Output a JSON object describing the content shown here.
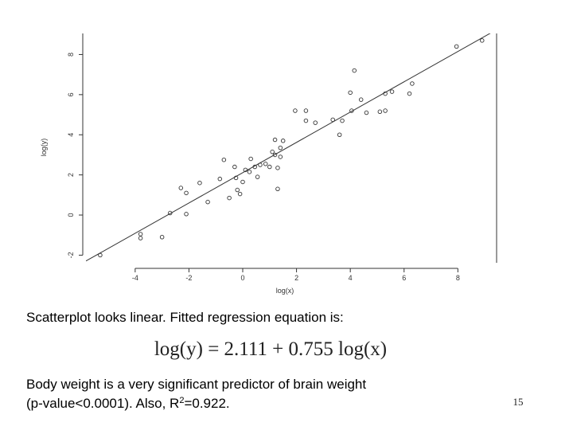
{
  "chart_data": {
    "type": "scatter",
    "xlabel": "log(x)",
    "ylabel": "log(y)",
    "x": [
      -5.3,
      -3.8,
      -3.8,
      -3.0,
      -2.7,
      -2.3,
      -2.1,
      -2.1,
      -1.6,
      -1.3,
      -0.85,
      -0.7,
      -0.5,
      -0.3,
      -0.25,
      -0.2,
      -0.1,
      0,
      0.1,
      0.25,
      0.3,
      0.45,
      0.55,
      0.65,
      0.85,
      1.0,
      1.1,
      1.2,
      1.2,
      1.3,
      1.3,
      1.4,
      1.4,
      1.5,
      1.95,
      2.35,
      2.35,
      2.7,
      3.35,
      3.6,
      3.7,
      4.0,
      4.05,
      4.15,
      4.4,
      4.6,
      5.1,
      5.3,
      5.3,
      5.55,
      6.2,
      6.3,
      7.95,
      8.9
    ],
    "values": [
      -2.0,
      -0.95,
      -1.15,
      -1.1,
      0.1,
      1.35,
      0.05,
      1.1,
      1.6,
      0.65,
      1.8,
      2.75,
      0.85,
      2.4,
      1.85,
      1.25,
      1.05,
      1.65,
      2.25,
      2.15,
      2.8,
      2.4,
      1.9,
      2.5,
      2.55,
      2.4,
      3.15,
      3.0,
      3.75,
      1.3,
      2.35,
      2.9,
      3.35,
      3.7,
      5.2,
      4.7,
      5.2,
      4.6,
      4.75,
      4.0,
      4.7,
      6.1,
      5.2,
      7.2,
      5.75,
      5.1,
      5.15,
      5.2,
      6.05,
      6.15,
      6.05,
      6.55,
      8.4,
      8.7
    ],
    "color": "#333333",
    "fit": {
      "intercept": 2.111,
      "slope": 0.755
    },
    "xlim": [
      -5.83,
      9.44
    ],
    "xticks": [
      -4,
      -2,
      0,
      2,
      4,
      6,
      8
    ],
    "ylim": [
      -2.38,
      9.05
    ],
    "yticks": [
      -2,
      0,
      2,
      4,
      6,
      8
    ]
  },
  "caption": "Scatterplot looks linear. Fitted regression equation is:",
  "equation": "log(y) = 2.111 + 0.755 log(x)",
  "body": {
    "line1": "Body weight is a very significant predictor of brain weight",
    "line2_a": "(p-value<0.0001). Also, R",
    "line2_sup": "2",
    "line2_b": "=0.922."
  },
  "page_number": "15"
}
